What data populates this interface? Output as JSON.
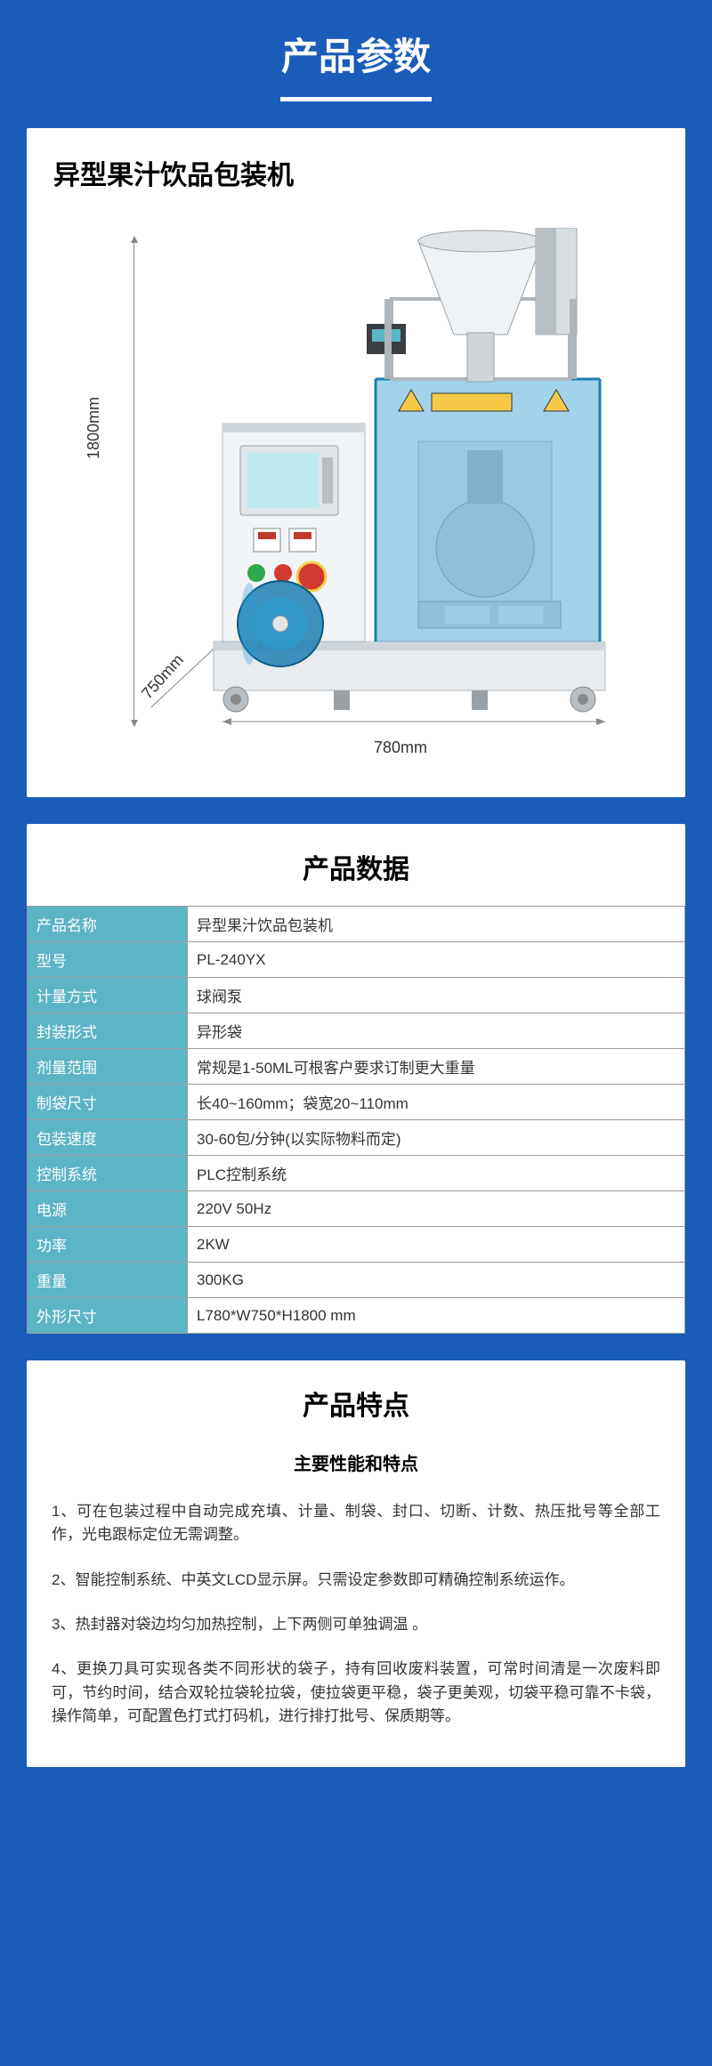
{
  "page": {
    "main_title": "产品参数",
    "background_color": "#1a5db8",
    "card_background": "#ffffff"
  },
  "product": {
    "title": "异型果汁饮品包装机",
    "dimensions": {
      "height_label": "1800mm",
      "depth_label": "750mm",
      "width_label": "780mm"
    },
    "machine": {
      "body_color": "#e8ecef",
      "cover_color": "#2a9fd6",
      "cover_opacity": 0.55,
      "frame_color": "#cfd6db",
      "screen_color": "#bfe8ef",
      "button_green": "#2fa84f",
      "button_red": "#d13a2e",
      "warning_yellow": "#f7c948",
      "roll_color": "#1f7fb3"
    }
  },
  "specs": {
    "title": "产品数据",
    "header_color": "#5bb5c4",
    "border_color": "#999999",
    "text_color": "#333333",
    "label_text_color": "#ffffff",
    "rows": [
      {
        "label": "产品名称",
        "value": "异型果汁饮品包装机"
      },
      {
        "label": "型号",
        "value": "PL-240YX"
      },
      {
        "label": "计量方式",
        "value": "球阀泵"
      },
      {
        "label": "封装形式",
        "value": "异形袋"
      },
      {
        "label": "剂量范围",
        "value": "常规是1-50ML可根客户要求订制更大重量"
      },
      {
        "label": "制袋尺寸",
        "value": "长40~160mm；袋宽20~110mm"
      },
      {
        "label": "包装速度",
        "value": "30-60包/分钟(以实际物料而定)"
      },
      {
        "label": "控制系统",
        "value": "PLC控制系统"
      },
      {
        "label": "电源",
        "value": "220V 50Hz"
      },
      {
        "label": "功率",
        "value": "2KW"
      },
      {
        "label": "重量",
        "value": "300KG"
      },
      {
        "label": "外形尺寸",
        "value": "L780*W750*H1800 mm"
      }
    ]
  },
  "features": {
    "title": "产品特点",
    "subtitle": "主要性能和特点",
    "items": [
      "1、可在包装过程中自动完成充填、计量、制袋、封口、切断、计数、热压批号等全部工作，光电跟标定位无需调整。",
      "2、智能控制系统、中英文LCD显示屏。只需设定参数即可精确控制系统运作。",
      "3、热封器对袋边均匀加热控制，上下两侧可单独调温 。",
      "4、更换刀具可实现各类不同形状的袋子，持有回收废料装置，可常时间清是一次废料即可，节约时间，结合双轮拉袋轮拉袋，使拉袋更平稳，袋子更美观，切袋平稳可靠不卡袋，操作简单，可配置色打式打码机，进行排打批号、保质期等。"
    ]
  }
}
